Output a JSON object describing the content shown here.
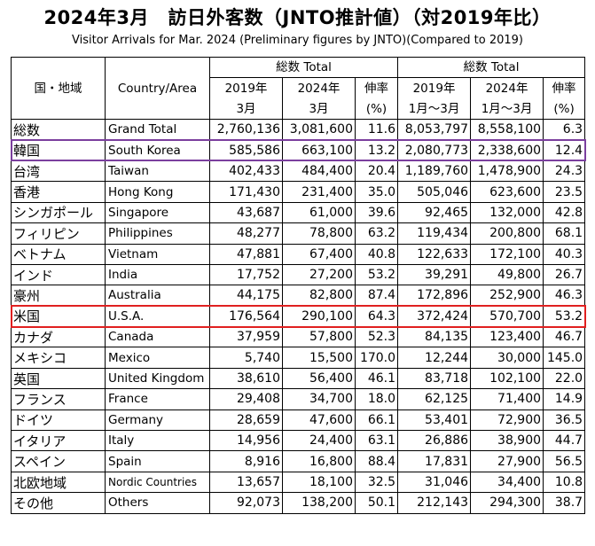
{
  "title": "2024年3月　訪日外客数（JNTO推計値）（対2019年比）",
  "subtitle": "Visitor Arrivals for Mar. 2024 (Preliminary figures by JNTO)(Compared to 2019)",
  "header": {
    "country_jp": "国・地域",
    "country_en": "Country/Area",
    "group1_label": "総数 Total",
    "group2_label": "総数 Total",
    "col_2019_mar": [
      "2019年",
      "3月"
    ],
    "col_2024_mar": [
      "2024年",
      "3月"
    ],
    "col_growth1": [
      "伸率",
      "(%)"
    ],
    "col_2019_jan_mar": [
      "2019年",
      "1月～3月"
    ],
    "col_2024_jan_mar": [
      "2024年",
      "1月～3月"
    ],
    "col_growth2": [
      "伸率",
      "(%)"
    ]
  },
  "highlight_colors": {
    "south_korea": "#7b3f9e",
    "usa": "#e02020"
  },
  "chart_data": {
    "type": "table",
    "title": "2024年3月　訪日外客数（JNTO推計値）（対2019年比）",
    "columns": [
      "国・地域",
      "Country/Area",
      "2019年3月",
      "2024年3月",
      "伸率(%)",
      "2019年1月～3月",
      "2024年1月～3月",
      "伸率(%)"
    ],
    "rows": [
      {
        "jp": "総数",
        "en": "Grand Total",
        "m2019": "2,760,136",
        "m2024": "3,081,600",
        "g1": "11.6",
        "q2019": "8,053,797",
        "q2024": "8,558,100",
        "g2": "6.3"
      },
      {
        "jp": "韓国",
        "en": "South Korea",
        "m2019": "585,586",
        "m2024": "663,100",
        "g1": "13.2",
        "q2019": "2,080,773",
        "q2024": "2,338,600",
        "g2": "12.4"
      },
      {
        "jp": "台湾",
        "en": "Taiwan",
        "m2019": "402,433",
        "m2024": "484,400",
        "g1": "20.4",
        "q2019": "1,189,760",
        "q2024": "1,478,900",
        "g2": "24.3"
      },
      {
        "jp": "香港",
        "en": "Hong Kong",
        "m2019": "171,430",
        "m2024": "231,400",
        "g1": "35.0",
        "q2019": "505,046",
        "q2024": "623,600",
        "g2": "23.5"
      },
      {
        "jp": "シンガポール",
        "en": "Singapore",
        "m2019": "43,687",
        "m2024": "61,000",
        "g1": "39.6",
        "q2019": "92,465",
        "q2024": "132,000",
        "g2": "42.8"
      },
      {
        "jp": "フィリピン",
        "en": "Philippines",
        "m2019": "48,277",
        "m2024": "78,800",
        "g1": "63.2",
        "q2019": "119,434",
        "q2024": "200,800",
        "g2": "68.1"
      },
      {
        "jp": "ベトナム",
        "en": "Vietnam",
        "m2019": "47,881",
        "m2024": "67,400",
        "g1": "40.8",
        "q2019": "122,633",
        "q2024": "172,100",
        "g2": "40.3"
      },
      {
        "jp": "インド",
        "en": "India",
        "m2019": "17,752",
        "m2024": "27,200",
        "g1": "53.2",
        "q2019": "39,291",
        "q2024": "49,800",
        "g2": "26.7"
      },
      {
        "jp": "豪州",
        "en": "Australia",
        "m2019": "44,175",
        "m2024": "82,800",
        "g1": "87.4",
        "q2019": "172,896",
        "q2024": "252,900",
        "g2": "46.3"
      },
      {
        "jp": "米国",
        "en": "U.S.A.",
        "m2019": "176,564",
        "m2024": "290,100",
        "g1": "64.3",
        "q2019": "372,424",
        "q2024": "570,700",
        "g2": "53.2"
      },
      {
        "jp": "カナダ",
        "en": "Canada",
        "m2019": "37,959",
        "m2024": "57,800",
        "g1": "52.3",
        "q2019": "84,135",
        "q2024": "123,400",
        "g2": "46.7"
      },
      {
        "jp": "メキシコ",
        "en": "Mexico",
        "m2019": "5,740",
        "m2024": "15,500",
        "g1": "170.0",
        "q2019": "12,244",
        "q2024": "30,000",
        "g2": "145.0"
      },
      {
        "jp": "英国",
        "en": "United Kingdom",
        "m2019": "38,610",
        "m2024": "56,400",
        "g1": "46.1",
        "q2019": "83,718",
        "q2024": "102,100",
        "g2": "22.0"
      },
      {
        "jp": "フランス",
        "en": "France",
        "m2019": "29,408",
        "m2024": "34,700",
        "g1": "18.0",
        "q2019": "62,125",
        "q2024": "71,400",
        "g2": "14.9"
      },
      {
        "jp": "ドイツ",
        "en": "Germany",
        "m2019": "28,659",
        "m2024": "47,600",
        "g1": "66.1",
        "q2019": "53,401",
        "q2024": "72,900",
        "g2": "36.5"
      },
      {
        "jp": "イタリア",
        "en": "Italy",
        "m2019": "14,956",
        "m2024": "24,400",
        "g1": "63.1",
        "q2019": "26,886",
        "q2024": "38,900",
        "g2": "44.7"
      },
      {
        "jp": "スペイン",
        "en": "Spain",
        "m2019": "8,916",
        "m2024": "16,800",
        "g1": "88.4",
        "q2019": "17,831",
        "q2024": "27,900",
        "g2": "56.5"
      },
      {
        "jp": "北欧地域",
        "en": "Nordic Countries",
        "m2019": "13,657",
        "m2024": "18,100",
        "g1": "32.5",
        "q2019": "31,046",
        "q2024": "34,400",
        "g2": "10.8"
      },
      {
        "jp": "その他",
        "en": "Others",
        "m2019": "92,073",
        "m2024": "138,200",
        "g1": "50.1",
        "q2019": "212,143",
        "q2024": "294,300",
        "g2": "38.7"
      }
    ]
  }
}
